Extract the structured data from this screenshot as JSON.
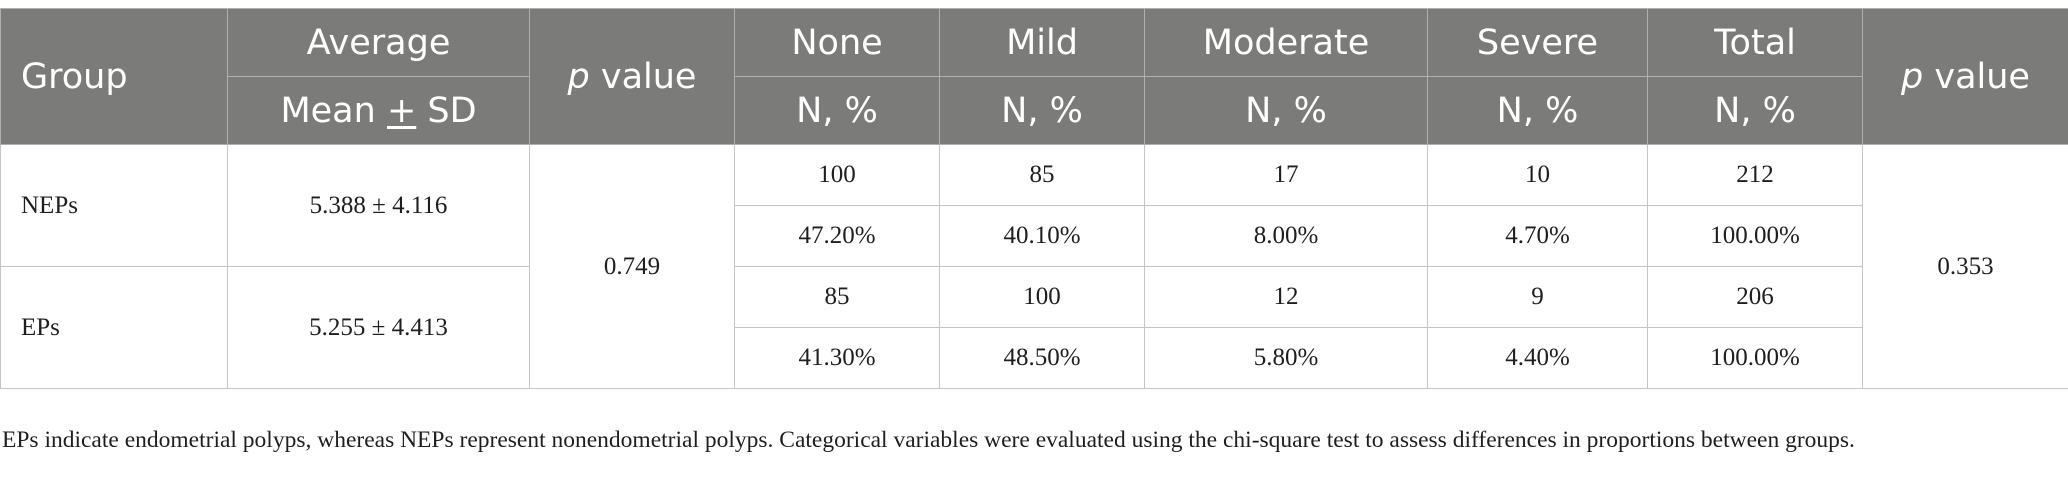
{
  "header": {
    "group": "Group",
    "average": "Average",
    "average_sub_a": "Mean ",
    "average_sub_pm": "+",
    "average_sub_b": " SD",
    "p_italic": "p",
    "p_rest": " value",
    "categories": [
      "None",
      "Mild",
      "Moderate",
      "Severe",
      "Total"
    ],
    "category_sub": "N, %"
  },
  "rows": [
    {
      "group": "NEPs",
      "average": "5.388 ± 4.116",
      "counts": [
        "100",
        "85",
        "17",
        "10",
        "212"
      ],
      "percents": [
        "47.20%",
        "40.10%",
        "8.00%",
        "4.70%",
        "100.00%"
      ]
    },
    {
      "group": "EPs",
      "average": "5.255 ± 4.413",
      "counts": [
        "85",
        "100",
        "12",
        "9",
        "206"
      ],
      "percents": [
        "41.30%",
        "48.50%",
        "5.80%",
        "4.40%",
        "100.00%"
      ]
    }
  ],
  "p_value_average": "0.749",
  "p_value_categories": "0.353",
  "footnote": "EPs indicate endometrial polyps, whereas NEPs represent nonendometrial polyps. Categorical variables were evaluated using the chi-square test to assess differences in proportions between groups."
}
